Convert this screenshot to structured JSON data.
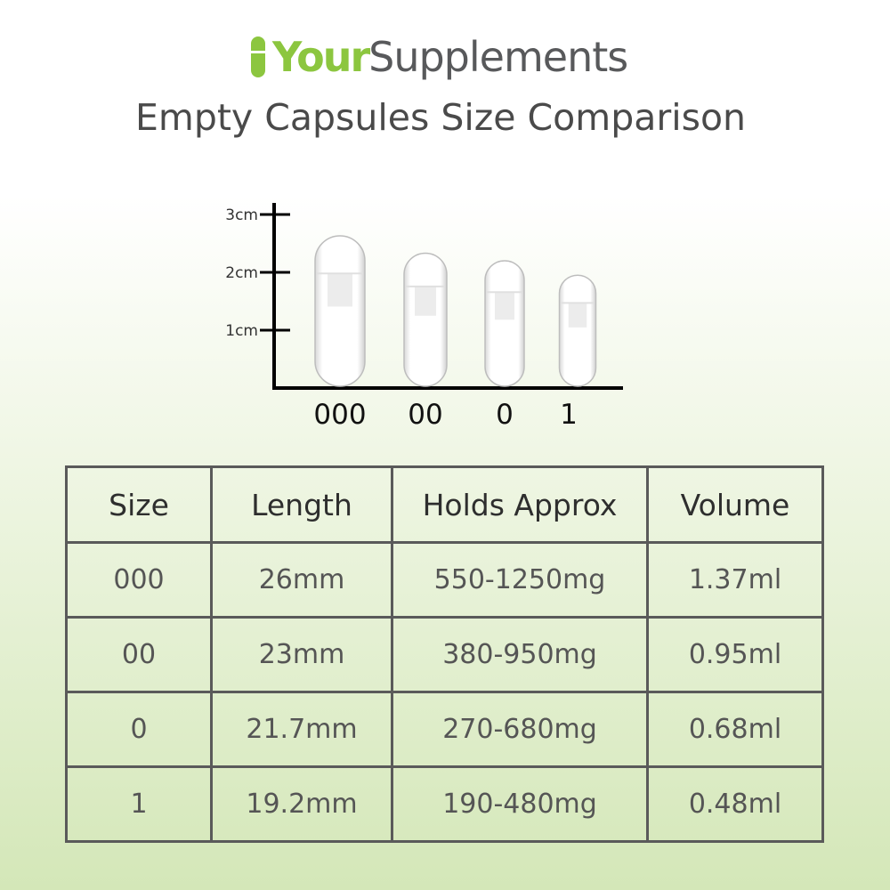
{
  "brand": {
    "logo_part1": "Your",
    "logo_part2": "Supplements",
    "accent_color": "#8cc63f",
    "text_color": "#58595b"
  },
  "title": "Empty Capsules Size Comparison",
  "chart_data": {
    "type": "bar",
    "categories": [
      "000",
      "00",
      "0",
      "1"
    ],
    "values": [
      2.6,
      2.3,
      2.17,
      1.92
    ],
    "y_ticks": [
      "1cm",
      "2cm",
      "3cm"
    ],
    "ylim": [
      0,
      3.2
    ],
    "unit": "cm"
  },
  "table": {
    "headers": [
      "Size",
      "Length",
      "Holds Approx",
      "Volume"
    ],
    "rows": [
      [
        "000",
        "26mm",
        "550-1250mg",
        "1.37ml"
      ],
      [
        "00",
        "23mm",
        "380-950mg",
        "0.95ml"
      ],
      [
        "0",
        "21.7mm",
        "270-680mg",
        "0.68ml"
      ],
      [
        "1",
        "19.2mm",
        "190-480mg",
        "0.48ml"
      ]
    ]
  }
}
